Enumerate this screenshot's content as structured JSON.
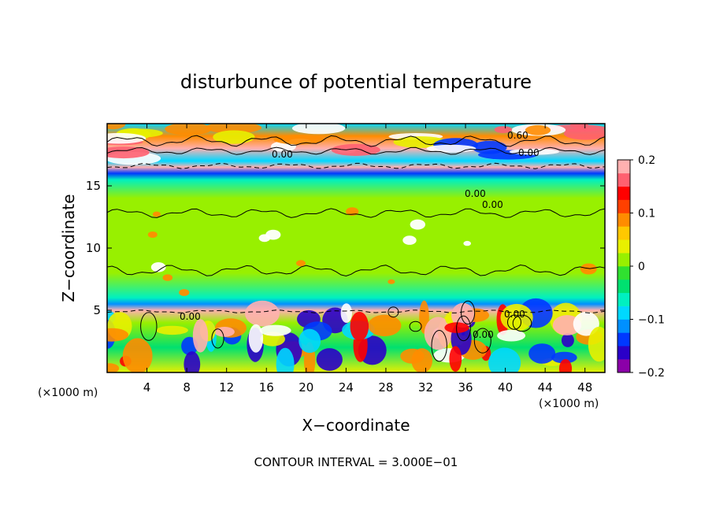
{
  "chart_data": {
    "type": "heatmap",
    "title": "disturbunce of potential temperature",
    "xlabel": "X−coordinate",
    "ylabel": "Z−coordinate",
    "x_unit_left": "(×1000 m)",
    "x_unit_right": "(×1000 m)",
    "x_ticks": [
      "4",
      "8",
      "12",
      "16",
      "20",
      "24",
      "28",
      "32",
      "36",
      "40",
      "44",
      "48"
    ],
    "y_ticks": [
      "5",
      "10",
      "15"
    ],
    "xlim": [
      0,
      50
    ],
    "ylim": [
      0,
      20
    ],
    "footer": "CONTOUR INTERVAL = 3.000E−01",
    "contour_labels": [
      "0.00",
      "0.00",
      "0.00",
      "0.00",
      "0.00",
      "0.60",
      "0.00",
      "0.00"
    ],
    "colorbar": {
      "min": -0.2,
      "max": 0.2,
      "tick_labels": [
        "0.2",
        "0.1",
        "0",
        "−0.1",
        "−0.2"
      ],
      "tick_values": [
        0.2,
        0.1,
        0,
        -0.1,
        -0.2
      ],
      "colors": [
        "#8b00a8",
        "#2a00c8",
        "#0038ff",
        "#0090ff",
        "#00d8ff",
        "#00f0c0",
        "#00e070",
        "#30e030",
        "#98f000",
        "#e8f000",
        "#ffc800",
        "#ff8c00",
        "#ff4000",
        "#ff0000",
        "#ff6070",
        "#ffb0b0"
      ]
    },
    "z_profile": {
      "z": [
        0,
        2,
        4,
        5,
        5.5,
        6,
        8,
        10,
        12,
        14,
        15.5,
        16,
        16.5,
        17,
        18,
        19,
        20
      ],
      "value": [
        0.04,
        -0.05,
        0.02,
        0.2,
        -0.12,
        -0.06,
        0,
        0.01,
        0,
        0,
        -0.06,
        -0.13,
        0.2,
        -0.1,
        0.2,
        0.08,
        -0.1
      ]
    }
  }
}
